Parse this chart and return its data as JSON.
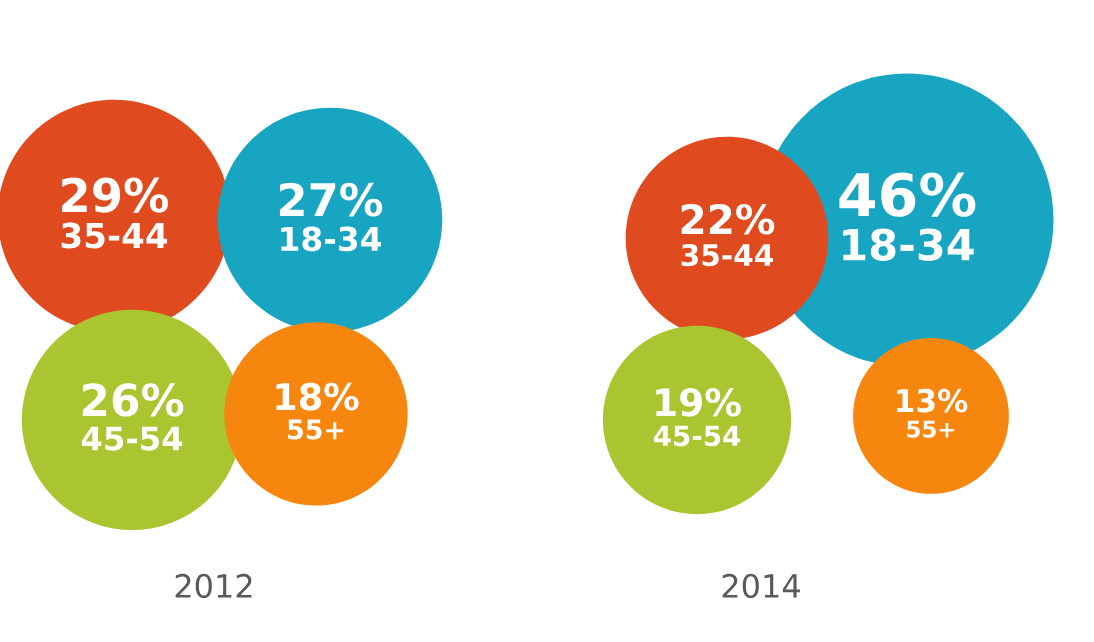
{
  "chart_data": [
    {
      "type": "other",
      "title": "2012",
      "categories": [
        "35-44",
        "18-34",
        "45-54",
        "55+"
      ],
      "values": [
        29,
        27,
        26,
        18
      ],
      "value_labels": [
        "29%",
        "27%",
        "26%",
        "18%"
      ],
      "colors": [
        "#e04a1f",
        "#18a5c2",
        "#a9c52f",
        "#f7860f"
      ]
    },
    {
      "type": "other",
      "title": "2014",
      "categories": [
        "35-44",
        "18-34",
        "45-54",
        "55+"
      ],
      "values": [
        22,
        46,
        19,
        13
      ],
      "value_labels": [
        "22%",
        "46%",
        "19%",
        "13%"
      ],
      "colors": [
        "#e04a1f",
        "#18a5c2",
        "#a9c52f",
        "#f7860f"
      ]
    }
  ]
}
